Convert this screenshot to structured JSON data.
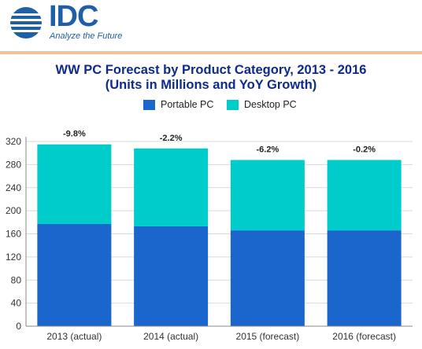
{
  "branding": {
    "logo_text": "IDC",
    "tagline": "Analyze the Future",
    "brand_color": "#1f5ea8"
  },
  "chart_data": {
    "type": "bar",
    "stacked": true,
    "title_line1": "WW PC Forecast by Product Category, 2013 - 2016",
    "title_line2": "(Units in Millions and YoY Growth)",
    "categories": [
      "2013 (actual)",
      "2014 (actual)",
      "2015 (forecast)",
      "2016 (forecast)"
    ],
    "series": [
      {
        "name": "Portable PC",
        "color": "#1a66cc",
        "values": [
          177,
          173,
          166,
          166
        ]
      },
      {
        "name": "Desktop PC",
        "color": "#00cccc",
        "values": [
          138,
          135,
          122,
          122
        ]
      }
    ],
    "growth_labels": [
      "-9.8%",
      "-2.2%",
      "-6.2%",
      "-0.2%"
    ],
    "ylim": [
      0,
      320
    ],
    "yticks": [
      0,
      40,
      80,
      120,
      160,
      200,
      240,
      280,
      320
    ],
    "grid": true,
    "legend_position": "top"
  }
}
